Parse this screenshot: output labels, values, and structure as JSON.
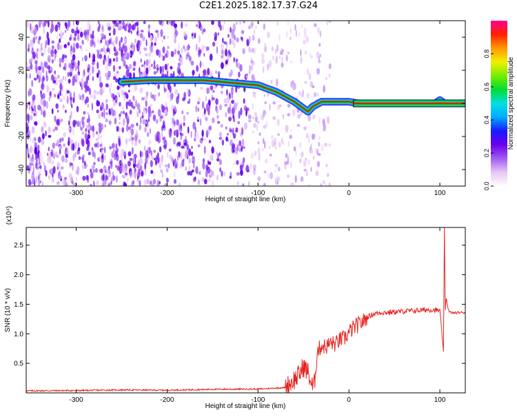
{
  "title": "C2E1.2025.182.17.37.G24",
  "colors": {
    "snr_line": "#e8211d",
    "signal_line": "#ff0000",
    "signal_band": "#00cc33",
    "noise": "#7a00ff",
    "axis": "#000000"
  },
  "chart_data": [
    {
      "type": "heatmap",
      "title": "C2E1.2025.182.17.37.G24",
      "xlabel": "Height of straight line (km)",
      "ylabel": "Frequency (Hz)",
      "xlim": [
        -355,
        128
      ],
      "ylim": [
        -50,
        50
      ],
      "x_ticks": [
        -300,
        -200,
        -100,
        0,
        100
      ],
      "x_tick_labels": [
        "-300",
        "-200",
        "-100",
        "0",
        "100"
      ],
      "y_ticks": [
        40,
        20,
        0,
        -20,
        -40
      ],
      "y_tick_labels": [
        "40",
        "20",
        "0",
        "-20",
        "-40"
      ],
      "grid": false,
      "colorbar": {
        "label": "Normalized spectral amplitude",
        "range": [
          0,
          1
        ],
        "ticks": [
          0.0,
          0.2,
          0.4,
          0.6,
          0.8
        ],
        "tick_labels": [
          "0.0",
          "0.2",
          "0.4",
          "0.6",
          "0.8"
        ],
        "colors": [
          "#ffffff",
          "#e7c6f5",
          "#a35cf0",
          "#6a00ee",
          "#1a1aff",
          "#00aaff",
          "#00e0e0",
          "#00dd33",
          "#77ee00",
          "#f0f000",
          "#ff9900",
          "#ff2200",
          "#ff0090"
        ]
      },
      "signal_track": {
        "x": [
          -250,
          -220,
          -190,
          -160,
          -140,
          -120,
          -100,
          -90,
          -80,
          -70,
          -60,
          -50,
          -45,
          -40,
          -30,
          -20,
          -10,
          0,
          10,
          50,
          95,
          100,
          105,
          128
        ],
        "y": [
          13,
          14,
          14,
          14,
          13,
          12,
          11,
          9,
          7,
          4,
          1,
          -3,
          -5,
          -2,
          1,
          1,
          1,
          1,
          0,
          0,
          0,
          2,
          0,
          0
        ]
      }
    },
    {
      "type": "line",
      "xlabel": "Height of straight line (km)",
      "ylabel": "SNR (10 * v/v)",
      "y_scale_label": "(x10⁴)",
      "xlim": [
        -355,
        128
      ],
      "ylim": [
        0,
        28000
      ],
      "x_ticks": [
        -300,
        -200,
        -100,
        0,
        100
      ],
      "x_tick_labels": [
        "-300",
        "-200",
        "-100",
        "0",
        "100"
      ],
      "y_ticks": [
        5000,
        10000,
        15000,
        20000,
        25000
      ],
      "y_tick_labels": [
        "0.5",
        "1.0",
        "1.5",
        "2.0",
        "2.5"
      ],
      "grid": false,
      "series": [
        {
          "x": [
            -355,
            -300,
            -250,
            -200,
            -150,
            -100,
            -70,
            -62,
            -55,
            -50,
            -45,
            -40,
            -38,
            -35,
            -30,
            -25,
            -20,
            -15,
            -10,
            -5,
            0,
            5,
            10,
            15,
            20,
            25,
            30,
            35,
            40,
            50,
            60,
            70,
            80,
            90,
            100,
            104,
            105,
            106,
            107,
            110,
            115,
            120,
            128
          ],
          "values": [
            350,
            400,
            500,
            450,
            600,
            650,
            900,
            2000,
            3000,
            4500,
            3500,
            900,
            1500,
            7000,
            8000,
            7800,
            8500,
            8200,
            9000,
            9200,
            10200,
            11000,
            11500,
            12000,
            12800,
            13200,
            13500,
            13600,
            13600,
            13700,
            13800,
            13900,
            14000,
            14100,
            13900,
            7000,
            28000,
            14000,
            16000,
            13700,
            13500,
            13600,
            13600
          ]
        }
      ]
    }
  ]
}
